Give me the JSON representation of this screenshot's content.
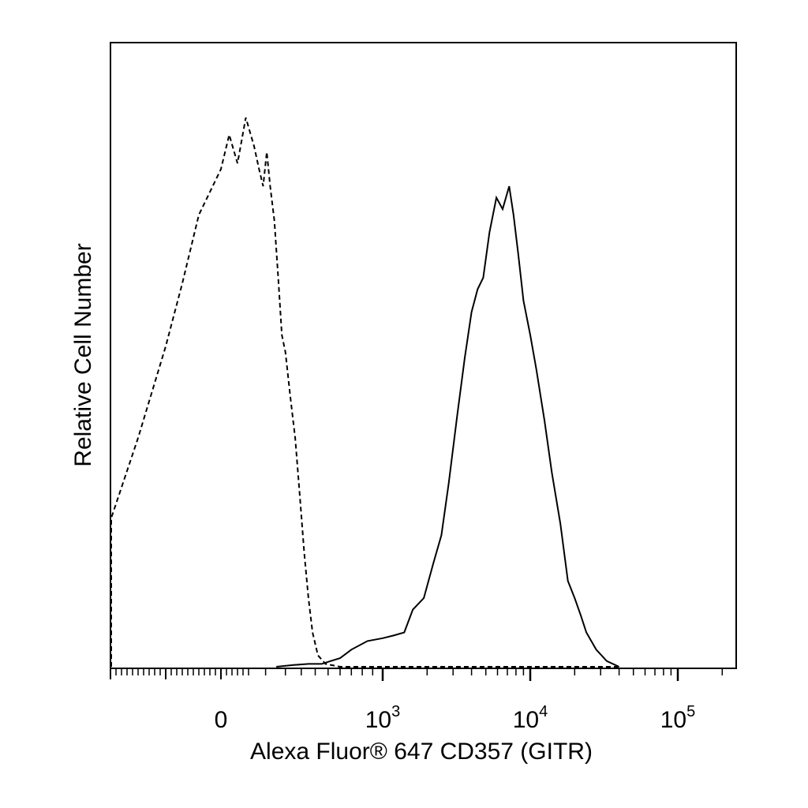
{
  "chart_data": {
    "type": "line",
    "title": "",
    "xlabel": "Alexa Fluor® 647 CD357 (GITR)",
    "ylabel": "Relative Cell Number",
    "x_scale": "biexponential",
    "x_ticks": [
      {
        "value": 0,
        "label": "0",
        "base": "0",
        "exp": ""
      },
      {
        "value": 1000,
        "label": "10^3",
        "base": "10",
        "exp": "3"
      },
      {
        "value": 10000,
        "label": "10^4",
        "base": "10",
        "exp": "4"
      },
      {
        "value": 100000,
        "label": "10^5",
        "base": "10",
        "exp": "5"
      }
    ],
    "xlim": [
      -700,
      250000
    ],
    "ylim": [
      0,
      100
    ],
    "grid": false,
    "legend": "none",
    "series": [
      {
        "style": "dashed",
        "color": "#000000",
        "points": [
          [
            -600,
            0
          ],
          [
            -500,
            1
          ],
          [
            -400,
            3
          ],
          [
            -300,
            9
          ],
          [
            -250,
            16
          ],
          [
            -200,
            26
          ],
          [
            -150,
            40
          ],
          [
            -100,
            56
          ],
          [
            -70,
            67
          ],
          [
            -40,
            79
          ],
          [
            -10,
            85
          ],
          [
            0,
            87
          ],
          [
            15,
            93
          ],
          [
            30,
            88
          ],
          [
            45,
            96
          ],
          [
            60,
            91
          ],
          [
            75,
            87
          ],
          [
            90,
            84
          ],
          [
            105,
            90
          ],
          [
            120,
            84
          ],
          [
            140,
            78
          ],
          [
            160,
            68
          ],
          [
            180,
            58
          ],
          [
            200,
            55
          ],
          [
            230,
            47
          ],
          [
            260,
            40
          ],
          [
            290,
            30
          ],
          [
            320,
            20
          ],
          [
            350,
            12
          ],
          [
            380,
            6
          ],
          [
            420,
            2
          ],
          [
            480,
            0.5
          ],
          [
            600,
            0
          ],
          [
            1000,
            0
          ],
          [
            10000,
            0
          ],
          [
            40000,
            0
          ]
        ]
      },
      {
        "style": "solid",
        "color": "#000000",
        "points": [
          [
            150,
            0
          ],
          [
            250,
            0.3
          ],
          [
            350,
            0.5
          ],
          [
            450,
            0.5
          ],
          [
            520,
            1
          ],
          [
            600,
            1.5
          ],
          [
            700,
            3
          ],
          [
            850,
            4.5
          ],
          [
            1000,
            5
          ],
          [
            1200,
            5.5
          ],
          [
            1400,
            6
          ],
          [
            1600,
            10
          ],
          [
            1900,
            12
          ],
          [
            2200,
            18
          ],
          [
            2500,
            23
          ],
          [
            2800,
            32
          ],
          [
            3200,
            44
          ],
          [
            3600,
            54
          ],
          [
            4000,
            62
          ],
          [
            4400,
            66
          ],
          [
            4800,
            68
          ],
          [
            5300,
            76
          ],
          [
            5900,
            82
          ],
          [
            6500,
            80
          ],
          [
            7200,
            84
          ],
          [
            7700,
            79
          ],
          [
            8300,
            72
          ],
          [
            9000,
            64
          ],
          [
            10000,
            58
          ],
          [
            11000,
            52
          ],
          [
            12500,
            43
          ],
          [
            14000,
            34
          ],
          [
            16000,
            25
          ],
          [
            18000,
            15
          ],
          [
            20000,
            12
          ],
          [
            22000,
            9
          ],
          [
            24000,
            6
          ],
          [
            28000,
            3
          ],
          [
            33000,
            1
          ],
          [
            40000,
            0
          ]
        ]
      }
    ]
  }
}
